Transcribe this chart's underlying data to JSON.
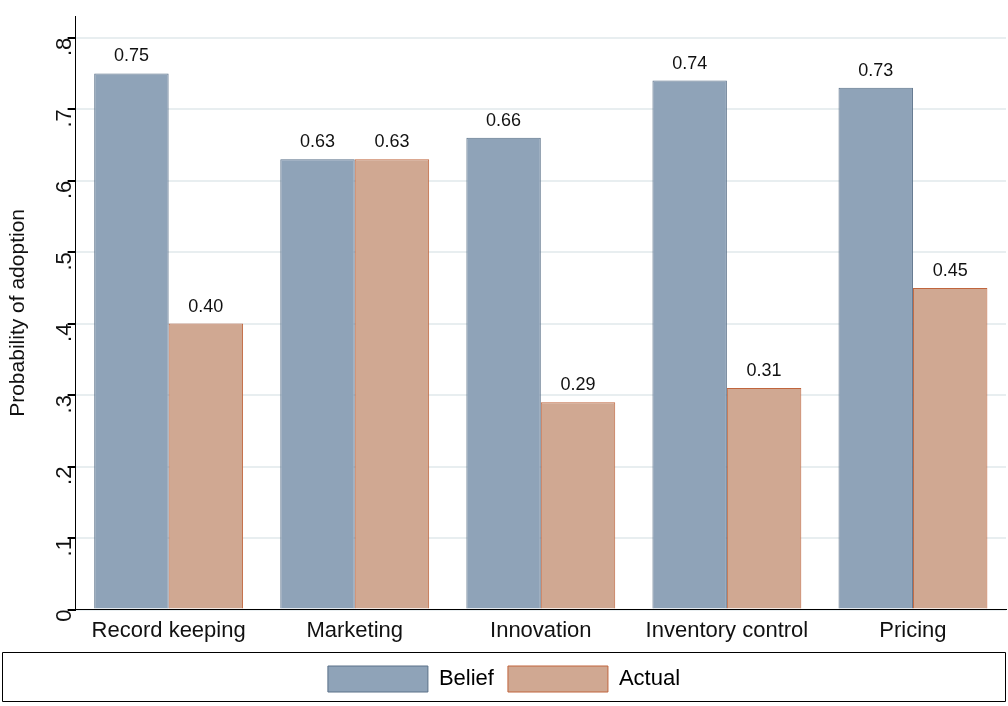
{
  "chart_data": {
    "type": "bar",
    "ylabel": "Probability of adoption",
    "categories": [
      "Record keeping",
      "Marketing",
      "Innovation",
      "Inventory control",
      "Pricing"
    ],
    "series": [
      {
        "name": "Belief",
        "color": "#8fa3b8",
        "values": [
          0.75,
          0.63,
          0.66,
          0.74,
          0.73
        ],
        "value_labels": [
          "0.75",
          "0.63",
          "0.66",
          "0.74",
          "0.73"
        ]
      },
      {
        "name": "Actual",
        "color": "#d0a892",
        "values": [
          0.4,
          0.63,
          0.29,
          0.31,
          0.45
        ],
        "value_labels": [
          "0.40",
          "0.63",
          "0.29",
          "0.31",
          "0.45"
        ]
      }
    ],
    "ylim": [
      0,
      0.83
    ],
    "yticks": [
      0,
      {
        "value": 0.1,
        "label": ".1"
      },
      {
        "value": 0.2,
        "label": ".2"
      },
      {
        "value": 0.3,
        "label": ".3"
      },
      {
        "value": 0.4,
        "label": ".4"
      },
      {
        "value": 0.5,
        "label": ".5"
      },
      {
        "value": 0.6,
        "label": ".6"
      },
      {
        "value": 0.7,
        "label": ".7"
      },
      {
        "value": 0.8,
        "label": ".8"
      }
    ],
    "grid": "y",
    "legend": "bottom"
  }
}
